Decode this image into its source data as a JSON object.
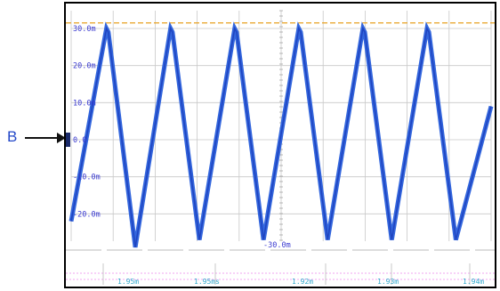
{
  "marker": {
    "label": "B",
    "arrow_icon": "right-arrow-icon"
  },
  "scope": {
    "y_labels": [
      "30.0m",
      "20.0m",
      "10.0m",
      "0.0",
      "-10.0m",
      "-20.0m"
    ],
    "min_label": "-30.0m",
    "x_labels": [
      "1.95m",
      "1.95ms",
      "1.92m",
      "1.93m",
      "1.94m"
    ],
    "colors": {
      "trace": "#3366dd",
      "upper_limit": "#e8a020",
      "grid": "#c8c8c8",
      "axis_text": "#3a3ad0",
      "timeline": "#ee88ee",
      "timeline_text": "#33aacc"
    }
  },
  "chart_data": {
    "type": "line",
    "title": "",
    "xlabel": "",
    "ylabel": "",
    "ylim": [
      -30,
      30
    ],
    "upper_limit": 31.5,
    "series": [
      {
        "x": [
          0,
          0.55,
          0.58,
          1.0,
          1.55,
          1.58,
          2.0,
          2.55,
          2.58,
          3.0,
          3.55,
          3.58,
          4.0,
          4.55,
          4.58,
          5.0,
          5.55,
          5.58,
          6.0,
          6.55
        ],
        "values": [
          -22,
          30,
          29,
          -29,
          30,
          29,
          -27,
          30,
          29,
          -27,
          30,
          29,
          -27,
          30,
          29,
          -27,
          30,
          29,
          -27,
          9
        ]
      }
    ]
  }
}
